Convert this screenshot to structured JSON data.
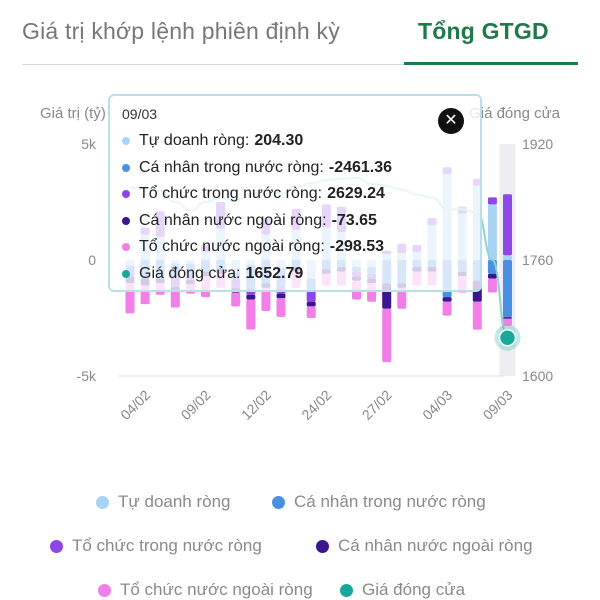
{
  "tabs": [
    {
      "label": "Giá trị khớp lệnh phiên định kỳ",
      "active": false
    },
    {
      "label": "Tổng GTGD",
      "active": true
    }
  ],
  "colors": {
    "tu_doanh": "#a9d3f2",
    "ca_nhan_trong_nuoc": "#4a90e2",
    "to_chuc_trong_nuoc": "#8d46e8",
    "ca_nhan_nuoc_ngoai": "#3b1690",
    "to_chuc_nuoc_ngoai": "#f27ee8",
    "gia_dong_cua": "#17a89a"
  },
  "tooltip": {
    "date": "09/03",
    "close_icon": "close-icon",
    "rows": [
      {
        "name": "Tự doanh ròng",
        "value": "204.30",
        "color": "#a9d3f2"
      },
      {
        "name": "Cá nhân trong nước ròng",
        "value": "-2461.36",
        "color": "#4a90e2"
      },
      {
        "name": "Tổ chức trong nước ròng",
        "value": "2629.24",
        "color": "#8d46e8"
      },
      {
        "name": "Cá nhân nước ngoài ròng",
        "value": "-73.65",
        "color": "#3b1690"
      },
      {
        "name": "Tổ chức nước ngoài ròng",
        "value": "-298.53",
        "color": "#f27ee8"
      },
      {
        "name": "Giá đóng cửa",
        "value": "1652.79",
        "color": "#17a89a"
      }
    ]
  },
  "legend": [
    {
      "label": "Tự doanh ròng",
      "color": "#a9d3f2"
    },
    {
      "label": "Cá nhân trong nước ròng",
      "color": "#4a90e2"
    },
    {
      "label": "Tổ chức trong nước ròng",
      "color": "#8d46e8"
    },
    {
      "label": "Cá nhân nước ngoài ròng",
      "color": "#3b1690"
    },
    {
      "label": "Tổ chức nước ngoài ròng",
      "color": "#f27ee8"
    },
    {
      "label": "Giá đóng cửa",
      "color": "#17a89a"
    }
  ],
  "chart_data": {
    "type": "bar",
    "stacked": true,
    "ylabel_left": "Giá trị (tỷ)",
    "ylabel_right": "Giá đóng cửa",
    "y_left_ticks": [
      "5k",
      "0",
      "-5k"
    ],
    "ylim_left": [
      -5000,
      5000
    ],
    "y_right_ticks": [
      "1920",
      "1760",
      "1600"
    ],
    "ylim_right": [
      1600,
      1920
    ],
    "x_tick_labels": [
      "04/02",
      "09/02",
      "12/02",
      "24/02",
      "27/02",
      "04/03",
      "09/03"
    ],
    "x_tick_index": [
      1,
      5,
      9,
      13,
      17,
      21,
      25
    ],
    "highlight_index": 25,
    "grid": false,
    "series": [
      {
        "name": "Tự doanh ròng",
        "color": "#a9d3f2",
        "values": [
          -250,
          1100,
          1000,
          -150,
          -150,
          350,
          1350,
          -500,
          -200,
          1100,
          -350,
          1300,
          -800,
          1400,
          1200,
          -300,
          -300,
          250,
          300,
          350,
          1500,
          3700,
          2000,
          3200,
          2400,
          204.3
        ]
      },
      {
        "name": "Cá nhân trong nước ròng",
        "color": "#4a90e2",
        "values": [
          -300,
          -800,
          -800,
          -600,
          -500,
          -500,
          -400,
          -300,
          -1000,
          -1000,
          -800,
          -300,
          -500,
          -400,
          -300,
          -200,
          -300,
          -1000,
          -1000,
          -300,
          -300,
          -1600,
          -500,
          -900,
          -600,
          -2461.36
        ]
      },
      {
        "name": "Tổ chức trong nước ròng",
        "color": "#8d46e8",
        "values": [
          -150,
          300,
          1100,
          -400,
          -200,
          300,
          1150,
          -400,
          -300,
          700,
          -300,
          900,
          -500,
          1000,
          1100,
          -200,
          -200,
          150,
          400,
          300,
          300,
          300,
          300,
          300,
          300,
          2629.24
        ]
      },
      {
        "name": "Cá nhân nước ngoài ròng",
        "color": "#3b1690",
        "values": [
          -300,
          -300,
          -200,
          -200,
          -200,
          -200,
          -200,
          -200,
          -200,
          -200,
          -200,
          -200,
          -200,
          -200,
          -200,
          -200,
          -200,
          -1100,
          -200,
          -200,
          -200,
          -200,
          -200,
          -900,
          -200,
          -73.65
        ]
      },
      {
        "name": "Tổ chức nước ngoài ròng",
        "color": "#f27ee8",
        "values": [
          -1300,
          -800,
          -500,
          -700,
          -400,
          -900,
          -600,
          -600,
          -1300,
          -1000,
          -800,
          -700,
          -500,
          -500,
          -600,
          -800,
          -800,
          -2300,
          -900,
          -600,
          -600,
          -600,
          -700,
          -1200,
          -600,
          -298.53
        ]
      }
    ],
    "line": {
      "name": "Giá đóng cửa",
      "color": "#17a89a",
      "axis": "right",
      "values": [
        1860,
        1858,
        1855,
        1840,
        1828,
        1840,
        1846,
        1842,
        1850,
        1856,
        1852,
        1860,
        1866,
        1870,
        1872,
        1873,
        1865,
        1862,
        1857,
        1850,
        1846,
        1830,
        1830,
        1825,
        1760,
        1652.79
      ]
    }
  }
}
